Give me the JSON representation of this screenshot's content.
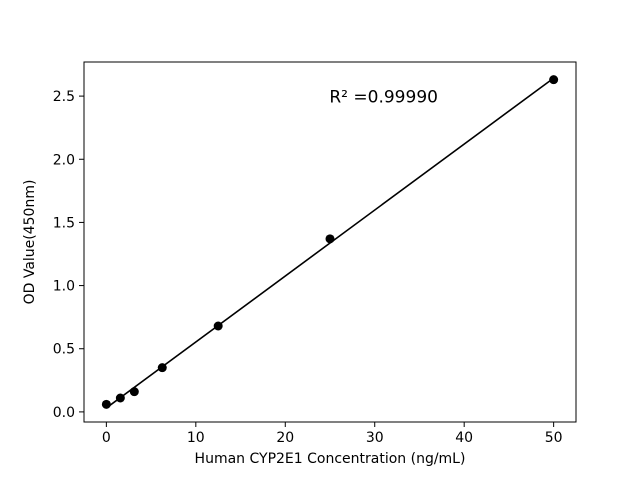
{
  "chart_data": {
    "type": "scatter",
    "title": "",
    "xlabel": "Human CYP2E1 Concentration (ng/mL)",
    "ylabel": "OD Value(450nm)",
    "x": [
      0,
      1.563,
      3.125,
      6.25,
      12.5,
      25,
      50
    ],
    "y": [
      0.06,
      0.11,
      0.16,
      0.35,
      0.68,
      1.37,
      2.63
    ],
    "fit": "linear",
    "annotation": {
      "text": "R² =0.99990",
      "x": 31,
      "y": 2.45
    },
    "xticks": [
      0,
      10,
      20,
      30,
      40,
      50
    ],
    "xtick_labels": [
      "0",
      "10",
      "20",
      "30",
      "40",
      "50"
    ],
    "yticks": [
      0.0,
      0.5,
      1.0,
      1.5,
      2.0,
      2.5
    ],
    "ytick_labels": [
      "0.0",
      "0.5",
      "1.0",
      "1.5",
      "2.0",
      "2.5"
    ],
    "xlim": [
      -2.5,
      52.5
    ],
    "ylim": [
      -0.08,
      2.77
    ],
    "grid": false,
    "legend": "none",
    "marker_color": "#000000",
    "line_color": "#000000",
    "background": "#ffffff"
  }
}
